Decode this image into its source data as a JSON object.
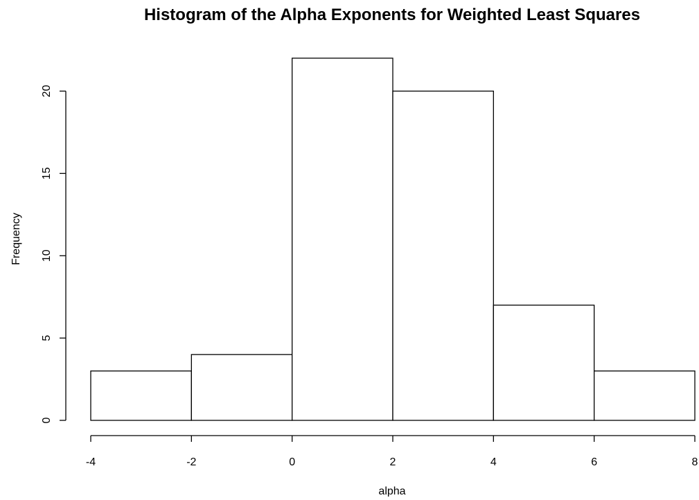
{
  "chart_data": {
    "type": "bar",
    "title": "Histogram of the Alpha Exponents for Weighted Least Squares",
    "xlabel": "alpha",
    "ylabel": "Frequency",
    "bins": [
      {
        "from": -4,
        "to": -2,
        "count": 3
      },
      {
        "from": -2,
        "to": 0,
        "count": 4
      },
      {
        "from": 0,
        "to": 2,
        "count": 22
      },
      {
        "from": 2,
        "to": 4,
        "count": 20
      },
      {
        "from": 4,
        "to": 6,
        "count": 7
      },
      {
        "from": 6,
        "to": 8,
        "count": 3
      }
    ],
    "xlim": [
      -4,
      8
    ],
    "ylim": [
      0,
      22
    ],
    "x_ticks": [
      -4,
      -2,
      0,
      2,
      4,
      6,
      8
    ],
    "x_tick_labels": [
      "-4",
      "-2",
      "0",
      "2",
      "4",
      "6",
      "8"
    ],
    "y_ticks": [
      0,
      5,
      10,
      15,
      20
    ],
    "y_tick_labels": [
      "0",
      "5",
      "10",
      "15",
      "20"
    ],
    "grid": false,
    "bar_fill": "#ffffff",
    "bar_stroke": "#000000"
  }
}
